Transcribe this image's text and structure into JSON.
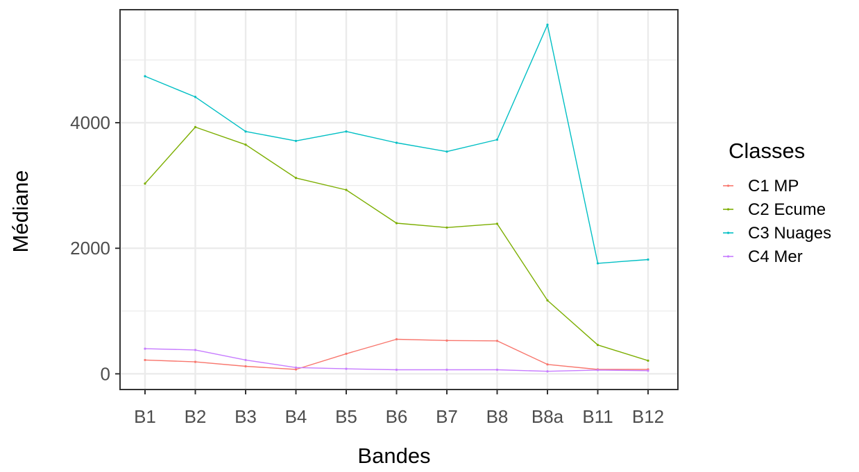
{
  "chart_data": {
    "type": "line",
    "title": "",
    "xlabel": "Bandes",
    "ylabel": "Médiane",
    "categories": [
      "B1",
      "B2",
      "B3",
      "B4",
      "B5",
      "B6",
      "B7",
      "B8",
      "B8a",
      "B11",
      "B12"
    ],
    "ylim": [
      -250,
      5800
    ],
    "yticks": [
      0,
      2000,
      4000
    ],
    "grid": true,
    "legend_title": "Classes",
    "legend_position": "right",
    "series": [
      {
        "name": "C1 MP",
        "color": "#F8766D",
        "values": [
          220,
          190,
          120,
          70,
          320,
          550,
          530,
          525,
          150,
          70,
          70
        ]
      },
      {
        "name": "C2 Ecume",
        "color": "#7CAE00",
        "values": [
          3030,
          3930,
          3650,
          3120,
          2930,
          2400,
          2330,
          2390,
          1170,
          460,
          210
        ]
      },
      {
        "name": "C3 Nuages",
        "color": "#00BFC4",
        "values": [
          4740,
          4410,
          3860,
          3710,
          3860,
          3680,
          3540,
          3730,
          5560,
          1760,
          1820
        ]
      },
      {
        "name": "C4 Mer",
        "color": "#C77CFF",
        "values": [
          400,
          380,
          220,
          100,
          80,
          65,
          65,
          65,
          40,
          60,
          50
        ]
      }
    ]
  }
}
